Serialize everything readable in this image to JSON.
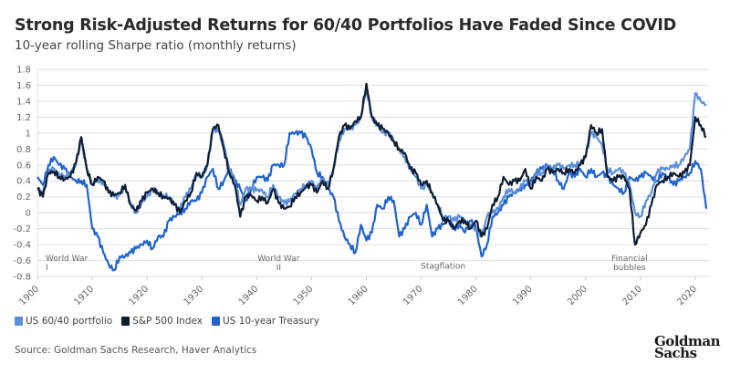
{
  "header": {
    "title": "Strong Risk-Adjusted Returns for 60/40 Portfolios Have Faded Since COVID",
    "subtitle": "10-year rolling Sharpe ratio (monthly returns)"
  },
  "legend": [
    {
      "label": "US 60/40 portfolio",
      "color": "#5b8fdc"
    },
    {
      "label": "S&P 500 Index",
      "color": "#0f1d33"
    },
    {
      "label": "US 10-year Treasury",
      "color": "#1f63cf"
    }
  ],
  "source": "Source: Goldman Sachs Research, Haver Analytics",
  "logo": {
    "line1": "Goldman",
    "line2": "Sachs"
  },
  "chart_data": {
    "type": "line",
    "title": "Strong Risk-Adjusted Returns for 60/40 Portfolios Have Faded Since COVID",
    "subtitle": "10-year rolling Sharpe ratio (monthly returns)",
    "xlabel": "",
    "ylabel": "",
    "xlim": [
      1900,
      2022.5
    ],
    "ylim": [
      -0.8,
      1.8
    ],
    "x_ticks": [
      "1900",
      "1910",
      "1920",
      "1930",
      "1940",
      "1950",
      "1960",
      "1970",
      "1980",
      "1990",
      "2000",
      "2010",
      "2020"
    ],
    "y_ticks": [
      "1.8",
      "1.6",
      "1.4",
      "1.2",
      "1",
      "0.8",
      "0.6",
      "0.4",
      "0.2",
      "0",
      "-0.2",
      "-0.4",
      "-0.6",
      "-0.8"
    ],
    "grid": "horizontal",
    "legend_position": "bottom-left",
    "annotations": [
      {
        "text": "World War I",
        "x": 1902,
        "y": -0.65
      },
      {
        "text": "World War II",
        "x": 1944,
        "y": -0.65
      },
      {
        "text": "Stagflation",
        "x": 1974,
        "y": -0.7
      },
      {
        "text": "Financial bubbles",
        "x": 2008,
        "y": -0.65
      }
    ],
    "series": [
      {
        "name": "US 60/40 portfolio",
        "color": "#5b8fdc",
        "x": [
          1900,
          1901,
          1902,
          1903,
          1904,
          1905,
          1906,
          1907,
          1908,
          1909,
          1910,
          1911,
          1912,
          1913,
          1914,
          1915,
          1916,
          1917,
          1918,
          1919,
          1920,
          1921,
          1922,
          1923,
          1924,
          1925,
          1926,
          1927,
          1928,
          1929,
          1930,
          1931,
          1932,
          1933,
          1934,
          1935,
          1936,
          1937,
          1938,
          1939,
          1940,
          1941,
          1942,
          1943,
          1944,
          1945,
          1946,
          1947,
          1948,
          1949,
          1950,
          1951,
          1952,
          1953,
          1954,
          1955,
          1956,
          1957,
          1958,
          1959,
          1960,
          1961,
          1962,
          1963,
          1964,
          1965,
          1966,
          1967,
          1968,
          1969,
          1970,
          1971,
          1972,
          1973,
          1974,
          1975,
          1976,
          1977,
          1978,
          1979,
          1980,
          1981,
          1982,
          1983,
          1984,
          1985,
          1986,
          1987,
          1988,
          1989,
          1990,
          1991,
          1992,
          1993,
          1994,
          1995,
          1996,
          1997,
          1998,
          1999,
          2000,
          2001,
          2002,
          2003,
          2004,
          2005,
          2006,
          2007,
          2008,
          2009,
          2010,
          2011,
          2012,
          2013,
          2014,
          2015,
          2016,
          2017,
          2018,
          2019,
          2020,
          2021,
          2022
        ],
        "values": [
          0.3,
          0.25,
          0.5,
          0.55,
          0.48,
          0.46,
          0.5,
          0.6,
          0.9,
          0.55,
          0.35,
          0.42,
          0.38,
          0.28,
          0.2,
          0.22,
          0.32,
          0.12,
          0.0,
          0.12,
          0.2,
          0.3,
          0.25,
          0.22,
          0.2,
          0.1,
          0.05,
          0.2,
          0.3,
          0.5,
          0.45,
          0.6,
          1.05,
          1.02,
          0.85,
          0.55,
          0.4,
          0.1,
          0.3,
          0.3,
          0.28,
          0.28,
          0.2,
          0.35,
          0.2,
          0.12,
          0.14,
          0.24,
          0.3,
          0.35,
          0.4,
          0.3,
          0.42,
          0.35,
          0.55,
          0.9,
          1.05,
          1.05,
          1.1,
          1.2,
          1.55,
          1.2,
          1.1,
          1.0,
          1.0,
          0.9,
          0.8,
          0.7,
          0.55,
          0.45,
          0.3,
          0.35,
          0.25,
          0.1,
          -0.05,
          -0.05,
          -0.1,
          -0.05,
          -0.1,
          -0.15,
          -0.2,
          -0.3,
          -0.05,
          0.0,
          0.05,
          0.2,
          0.3,
          0.25,
          0.3,
          0.4,
          0.35,
          0.5,
          0.5,
          0.6,
          0.55,
          0.6,
          0.55,
          0.6,
          0.6,
          0.62,
          0.7,
          1.0,
          0.95,
          0.85,
          0.55,
          0.5,
          0.55,
          0.5,
          0.35,
          0.0,
          -0.05,
          0.15,
          0.25,
          0.5,
          0.55,
          0.55,
          0.6,
          0.6,
          0.7,
          0.8,
          1.5,
          1.4,
          1.35
        ]
      },
      {
        "name": "S&P 500 Index",
        "color": "#0f1d33",
        "x": [
          1900,
          1901,
          1902,
          1903,
          1904,
          1905,
          1906,
          1907,
          1908,
          1909,
          1910,
          1911,
          1912,
          1913,
          1914,
          1915,
          1916,
          1917,
          1918,
          1919,
          1920,
          1921,
          1922,
          1923,
          1924,
          1925,
          1926,
          1927,
          1928,
          1929,
          1930,
          1931,
          1932,
          1933,
          1934,
          1935,
          1936,
          1937,
          1938,
          1939,
          1940,
          1941,
          1942,
          1943,
          1944,
          1945,
          1946,
          1947,
          1948,
          1949,
          1950,
          1951,
          1952,
          1953,
          1954,
          1955,
          1956,
          1957,
          1958,
          1959,
          1960,
          1961,
          1962,
          1963,
          1964,
          1965,
          1966,
          1967,
          1968,
          1969,
          1970,
          1971,
          1972,
          1973,
          1974,
          1975,
          1976,
          1977,
          1978,
          1979,
          1980,
          1981,
          1982,
          1983,
          1984,
          1985,
          1986,
          1987,
          1988,
          1989,
          1990,
          1991,
          1992,
          1993,
          1994,
          1995,
          1996,
          1997,
          1998,
          1999,
          2000,
          2001,
          2002,
          2003,
          2004,
          2005,
          2006,
          2007,
          2008,
          2009,
          2010,
          2011,
          2012,
          2013,
          2014,
          2015,
          2016,
          2017,
          2018,
          2019,
          2020,
          2021,
          2022
        ],
        "values": [
          0.3,
          0.2,
          0.5,
          0.52,
          0.45,
          0.42,
          0.45,
          0.62,
          0.95,
          0.55,
          0.35,
          0.45,
          0.4,
          0.25,
          0.22,
          0.25,
          0.35,
          0.1,
          0.02,
          0.15,
          0.25,
          0.3,
          0.25,
          0.2,
          0.18,
          0.1,
          0.0,
          0.15,
          0.25,
          0.5,
          0.45,
          0.6,
          1.05,
          1.1,
          0.8,
          0.5,
          0.35,
          -0.05,
          0.2,
          0.22,
          0.15,
          0.2,
          0.12,
          0.3,
          0.12,
          0.05,
          0.08,
          0.2,
          0.25,
          0.32,
          0.35,
          0.25,
          0.4,
          0.3,
          0.55,
          0.95,
          1.1,
          1.05,
          1.15,
          1.2,
          1.62,
          1.2,
          1.1,
          1.05,
          1.0,
          0.9,
          0.8,
          0.75,
          0.55,
          0.5,
          0.35,
          0.4,
          0.25,
          0.1,
          -0.1,
          -0.1,
          -0.2,
          -0.1,
          -0.1,
          -0.2,
          -0.1,
          -0.3,
          -0.2,
          0.1,
          0.2,
          0.45,
          0.35,
          0.4,
          0.4,
          0.55,
          0.3,
          0.45,
          0.4,
          0.55,
          0.5,
          0.55,
          0.5,
          0.55,
          0.5,
          0.6,
          0.7,
          1.1,
          1.0,
          1.05,
          0.45,
          0.4,
          0.45,
          0.45,
          0.3,
          -0.4,
          -0.25,
          -0.15,
          0.1,
          0.35,
          0.4,
          0.45,
          0.5,
          0.45,
          0.5,
          0.6,
          1.2,
          1.1,
          0.95
        ]
      },
      {
        "name": "US 10-year Treasury",
        "color": "#1f63cf",
        "x": [
          1900,
          1901,
          1902,
          1903,
          1904,
          1905,
          1906,
          1907,
          1908,
          1909,
          1910,
          1911,
          1912,
          1913,
          1914,
          1915,
          1916,
          1917,
          1918,
          1919,
          1920,
          1921,
          1922,
          1923,
          1924,
          1925,
          1926,
          1927,
          1928,
          1929,
          1930,
          1931,
          1932,
          1933,
          1934,
          1935,
          1936,
          1937,
          1938,
          1939,
          1940,
          1941,
          1942,
          1943,
          1944,
          1945,
          1946,
          1947,
          1948,
          1949,
          1950,
          1951,
          1952,
          1953,
          1954,
          1955,
          1956,
          1957,
          1958,
          1959,
          1960,
          1961,
          1962,
          1963,
          1964,
          1965,
          1966,
          1967,
          1968,
          1969,
          1970,
          1971,
          1972,
          1973,
          1974,
          1975,
          1976,
          1977,
          1978,
          1979,
          1980,
          1981,
          1982,
          1983,
          1984,
          1985,
          1986,
          1987,
          1988,
          1989,
          1990,
          1991,
          1992,
          1993,
          1994,
          1995,
          1996,
          1997,
          1998,
          1999,
          2000,
          2001,
          2002,
          2003,
          2004,
          2005,
          2006,
          2007,
          2008,
          2009,
          2010,
          2011,
          2012,
          2013,
          2014,
          2015,
          2016,
          2017,
          2018,
          2019,
          2020,
          2021,
          2022
        ],
        "values": [
          0.45,
          0.35,
          0.6,
          0.7,
          0.6,
          0.55,
          0.45,
          0.4,
          0.4,
          0.35,
          -0.2,
          -0.3,
          -0.5,
          -0.65,
          -0.72,
          -0.55,
          -0.55,
          -0.5,
          -0.45,
          -0.4,
          -0.35,
          -0.45,
          -0.3,
          -0.3,
          -0.1,
          -0.05,
          0.0,
          0.05,
          0.15,
          0.15,
          0.25,
          0.45,
          0.55,
          0.3,
          0.4,
          0.55,
          0.4,
          0.3,
          0.15,
          0.3,
          0.45,
          0.45,
          0.4,
          0.6,
          0.6,
          0.6,
          1.0,
          1.0,
          1.0,
          0.95,
          0.8,
          0.5,
          0.45,
          0.3,
          0.2,
          -0.1,
          -0.3,
          -0.4,
          -0.5,
          -0.15,
          -0.35,
          -0.25,
          0.1,
          0.05,
          0.2,
          0.15,
          -0.3,
          -0.2,
          -0.05,
          0.0,
          -0.15,
          0.1,
          -0.3,
          -0.2,
          -0.15,
          -0.1,
          -0.2,
          -0.15,
          -0.25,
          -0.1,
          -0.2,
          -0.55,
          -0.4,
          -0.05,
          0.0,
          0.1,
          0.2,
          0.25,
          0.3,
          0.35,
          0.4,
          0.5,
          0.55,
          0.6,
          0.55,
          0.4,
          0.3,
          0.5,
          0.45,
          0.55,
          0.45,
          0.55,
          0.45,
          0.5,
          0.45,
          0.35,
          0.3,
          0.25,
          0.45,
          0.4,
          0.45,
          0.5,
          0.45,
          0.4,
          0.5,
          0.45,
          0.35,
          0.4,
          0.45,
          0.5,
          0.65,
          0.55,
          0.05
        ]
      }
    ]
  }
}
